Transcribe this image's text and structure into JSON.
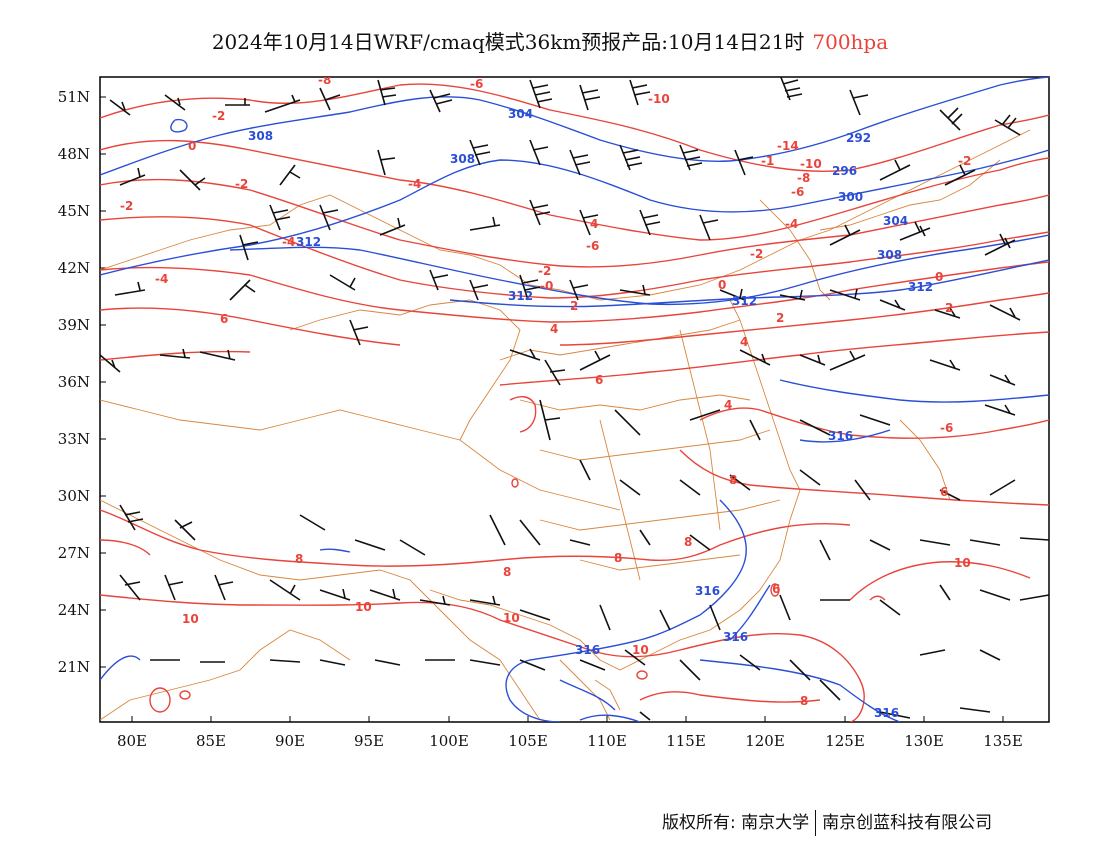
{
  "title": {
    "main": "2024年10月14日WRF/cmaq模式36km预报产品:10月14日21时",
    "level": "700hpa"
  },
  "axes": {
    "lon_labels": [
      "80E",
      "85E",
      "90E",
      "95E",
      "100E",
      "105E",
      "110E",
      "115E",
      "120E",
      "125E",
      "130E",
      "135E"
    ],
    "lat_labels": [
      "51N",
      "48N",
      "45N",
      "42N",
      "39N",
      "36N",
      "33N",
      "30N",
      "27N",
      "24N",
      "21N"
    ]
  },
  "contour_labels": {
    "temperature": [
      "-8",
      "-6",
      "-2",
      "0",
      "-2",
      "-4",
      "-10",
      "-14",
      "-1",
      "-10",
      "-8",
      "-6",
      "-4",
      "-2",
      "-4",
      "4",
      "-6",
      "-4",
      "-2",
      "-0",
      "2",
      "4",
      "6",
      "8",
      "8",
      "10",
      "8",
      "10",
      "10",
      "10",
      "8",
      "8",
      "10",
      "6",
      "4",
      "2",
      "0",
      "-2",
      "-6",
      "2",
      "6",
      "4",
      "8",
      "6",
      "0",
      "-2"
    ],
    "geopotential": [
      "304",
      "308",
      "308",
      "312",
      "312",
      "312",
      "292",
      "296",
      "300",
      "304",
      "308",
      "312",
      "316",
      "316",
      "316",
      "316",
      "316"
    ]
  },
  "footer": {
    "copyright_left": "版权所有: 南京大学",
    "copyright_right": "南京创蓝科技有限公司"
  },
  "colors": {
    "temperature": "#e8443a",
    "geopotential": "#2a4fd6",
    "borders": "#d9853b",
    "wind": "#111111"
  }
}
